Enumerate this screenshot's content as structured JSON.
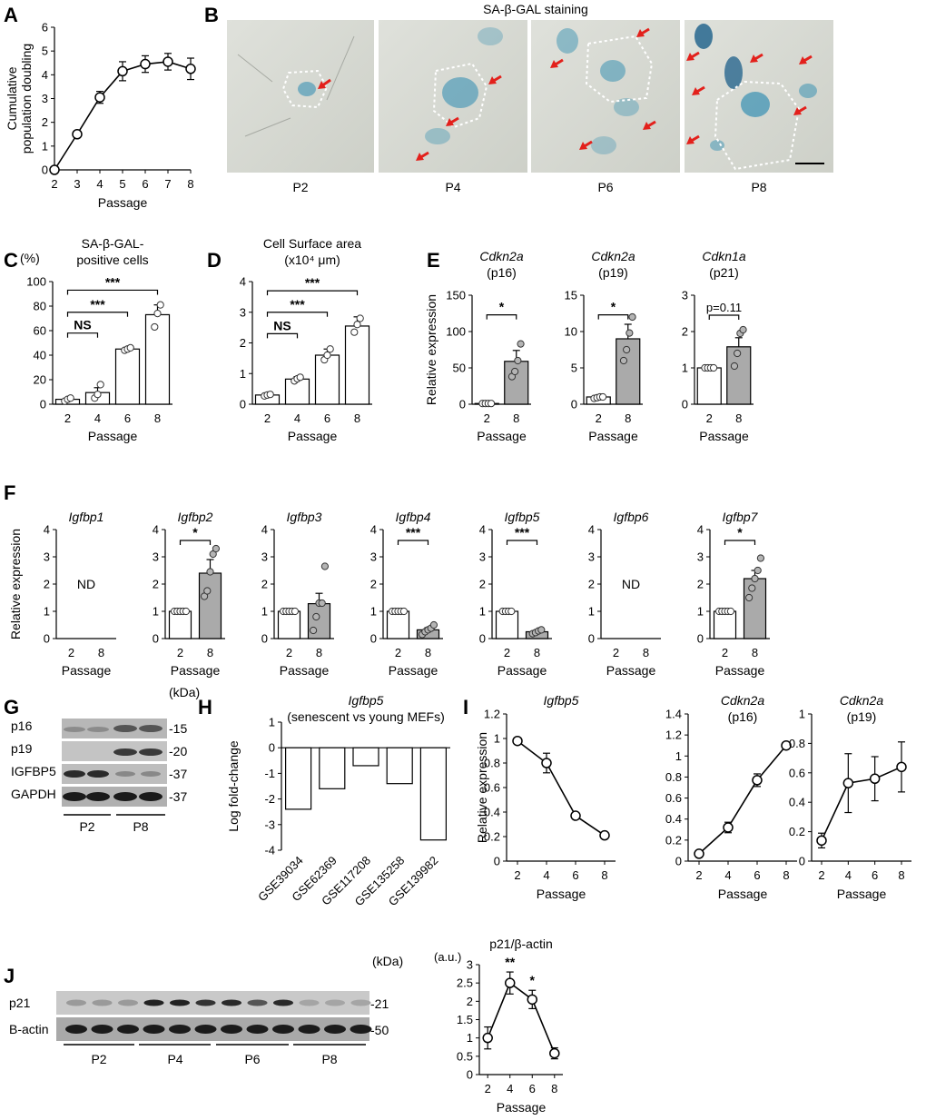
{
  "colors": {
    "open": "#ffffff",
    "gray": "#aaaaaa",
    "dot": "#b4b4b4",
    "arrow": "#e3201b",
    "stain": "#2b8bb0"
  },
  "chart_data": [
    {
      "id": "A",
      "type": "line",
      "panel_label": "A",
      "ylabel": [
        "Cumulative",
        "population doubling"
      ],
      "xlabel": "Passage",
      "x": [
        2,
        3,
        4,
        5,
        6,
        7,
        8
      ],
      "y": [
        0,
        1.5,
        3.05,
        4.15,
        4.45,
        4.55,
        4.25
      ],
      "err": [
        0,
        0.1,
        0.25,
        0.4,
        0.35,
        0.35,
        0.45
      ],
      "xlim": [
        2,
        8
      ],
      "ylim": [
        0,
        6
      ],
      "yticks": [
        0,
        1,
        2,
        3,
        4,
        5,
        6
      ]
    },
    {
      "id": "C",
      "type": "bar",
      "panel_label": "C",
      "unit": "(%)",
      "title": [
        "SA-β-GAL-",
        "positive cells"
      ],
      "xlabel": "Passage",
      "categories": [
        "2",
        "4",
        "6",
        "8"
      ],
      "values": [
        4,
        9.5,
        45,
        73
      ],
      "err": [
        1,
        4,
        1,
        8
      ],
      "points": [
        [
          2.5,
          4,
          5
        ],
        [
          5,
          8,
          16
        ],
        [
          44,
          45,
          46
        ],
        [
          63,
          74,
          81
        ]
      ],
      "ylim": [
        0,
        100
      ],
      "yticks": [
        0,
        20,
        40,
        60,
        80,
        100
      ],
      "brackets": [
        {
          "from": 0,
          "to": 1,
          "y": 58,
          "label": "NS"
        },
        {
          "from": 0,
          "to": 2,
          "y": 75,
          "label": "***"
        },
        {
          "from": 0,
          "to": 3,
          "y": 93,
          "label": "***"
        }
      ]
    },
    {
      "id": "D",
      "type": "bar",
      "panel_label": "D",
      "title": [
        "Cell Surface area",
        "(x10⁴ μm)"
      ],
      "xlabel": "Passage",
      "categories": [
        "2",
        "4",
        "6",
        "8"
      ],
      "values": [
        0.3,
        0.82,
        1.6,
        2.55
      ],
      "err": [
        0.04,
        0.08,
        0.2,
        0.3
      ],
      "points": [
        [
          0.27,
          0.3,
          0.32
        ],
        [
          0.76,
          0.83,
          0.88
        ],
        [
          1.45,
          1.6,
          1.8
        ],
        [
          2.35,
          2.6,
          2.8
        ]
      ],
      "ylim": [
        0,
        4
      ],
      "yticks": [
        0,
        1,
        2,
        3,
        4
      ],
      "brackets": [
        {
          "from": 0,
          "to": 1,
          "y": 2.3,
          "label": "NS"
        },
        {
          "from": 0,
          "to": 2,
          "y": 3.0,
          "label": "***"
        },
        {
          "from": 0,
          "to": 3,
          "y": 3.7,
          "label": "***"
        }
      ]
    },
    {
      "id": "E1",
      "type": "bar",
      "panel_label": "E",
      "title": [
        "Cdkn2a",
        "(p16)"
      ],
      "italic_first": true,
      "ylabel": "Relative expression",
      "xlabel": "Passage",
      "categories": [
        "2",
        "8"
      ],
      "values": [
        1,
        59
      ],
      "err": [
        0,
        15
      ],
      "points": [
        [
          1,
          1,
          1,
          1
        ],
        [
          38,
          45,
          60,
          83
        ]
      ],
      "ylim": [
        0,
        150
      ],
      "yticks": [
        0,
        50,
        100,
        150
      ],
      "gray": [
        false,
        true
      ],
      "brackets": [
        {
          "from": 0,
          "to": 1,
          "y": 123,
          "label": "*"
        }
      ]
    },
    {
      "id": "E2",
      "type": "bar",
      "title": [
        "Cdkn2a",
        "(p19)"
      ],
      "italic_first": true,
      "xlabel": "Passage",
      "categories": [
        "2",
        "8"
      ],
      "values": [
        1,
        9
      ],
      "err": [
        0.1,
        2
      ],
      "points": [
        [
          0.8,
          0.9,
          1,
          1
        ],
        [
          6,
          7.5,
          9.8,
          12
        ]
      ],
      "ylim": [
        0,
        15
      ],
      "yticks": [
        0,
        5,
        10,
        15
      ],
      "gray": [
        false,
        true
      ],
      "brackets": [
        {
          "from": 0,
          "to": 1,
          "y": 12.3,
          "label": "*"
        }
      ]
    },
    {
      "id": "E3",
      "type": "bar",
      "title": [
        "Cdkn1a",
        "(p21)"
      ],
      "italic_first": true,
      "xlabel": "Passage",
      "categories": [
        "2",
        "8"
      ],
      "values": [
        1,
        1.58
      ],
      "err": [
        0.02,
        0.25
      ],
      "points": [
        [
          1,
          1,
          1,
          1
        ],
        [
          1.05,
          1.4,
          1.95,
          2.05
        ]
      ],
      "ylim": [
        0,
        3
      ],
      "yticks": [
        0,
        1,
        2,
        3
      ],
      "gray": [
        false,
        true
      ],
      "brackets": [
        {
          "from": 0,
          "to": 1,
          "y": 2.45,
          "label": "p=0.11"
        }
      ]
    },
    {
      "id": "F1",
      "type": "bar",
      "panel_label": "F",
      "title": [
        "Igfbp1"
      ],
      "italic_first": true,
      "ylabel": "Relative expression",
      "xlabel": "Passage",
      "categories": [
        "2",
        "8"
      ],
      "values": [
        null,
        null
      ],
      "nd": "ND",
      "ylim": [
        0,
        4
      ],
      "yticks": [
        0,
        1,
        2,
        3,
        4
      ]
    },
    {
      "id": "F2",
      "type": "bar",
      "title": [
        "Igfbp2"
      ],
      "italic_first": true,
      "xlabel": "Passage",
      "categories": [
        "2",
        "8"
      ],
      "values": [
        1,
        2.4
      ],
      "err": [
        0,
        0.5
      ],
      "points": [
        [
          1,
          1,
          1,
          1,
          1
        ],
        [
          1.55,
          1.75,
          2.45,
          3.1,
          3.3
        ]
      ],
      "ylim": [
        0,
        4
      ],
      "yticks": [
        0,
        1,
        2,
        3,
        4
      ],
      "gray": [
        false,
        true
      ],
      "brackets": [
        {
          "from": 0,
          "to": 1,
          "y": 3.6,
          "label": "*"
        }
      ]
    },
    {
      "id": "F3",
      "type": "bar",
      "title": [
        "Igfbp3"
      ],
      "italic_first": true,
      "xlabel": "Passage",
      "categories": [
        "2",
        "8"
      ],
      "values": [
        1,
        1.28
      ],
      "err": [
        0,
        0.38
      ],
      "points": [
        [
          1,
          1,
          1,
          1,
          1
        ],
        [
          0.3,
          0.8,
          1.3,
          1.3,
          2.65
        ]
      ],
      "ylim": [
        0,
        4
      ],
      "yticks": [
        0,
        1,
        2,
        3,
        4
      ],
      "gray": [
        false,
        true
      ]
    },
    {
      "id": "F4",
      "type": "bar",
      "title": [
        "Igfbp4"
      ],
      "italic_first": true,
      "xlabel": "Passage",
      "categories": [
        "2",
        "8"
      ],
      "values": [
        1,
        0.32
      ],
      "err": [
        0,
        0.08
      ],
      "points": [
        [
          1,
          1,
          1,
          1,
          1
        ],
        [
          0.15,
          0.25,
          0.32,
          0.38,
          0.5
        ]
      ],
      "ylim": [
        0,
        4
      ],
      "yticks": [
        0,
        1,
        2,
        3,
        4
      ],
      "gray": [
        false,
        true
      ],
      "brackets": [
        {
          "from": 0,
          "to": 1,
          "y": 3.6,
          "label": "***"
        }
      ]
    },
    {
      "id": "F5",
      "type": "bar",
      "title": [
        "Igfbp5"
      ],
      "italic_first": true,
      "xlabel": "Passage",
      "categories": [
        "2",
        "8"
      ],
      "values": [
        1,
        0.25
      ],
      "err": [
        0,
        0.04
      ],
      "points": [
        [
          1,
          1,
          1,
          1
        ],
        [
          0.18,
          0.22,
          0.28,
          0.32
        ]
      ],
      "ylim": [
        0,
        4
      ],
      "yticks": [
        0,
        1,
        2,
        3,
        4
      ],
      "gray": [
        false,
        true
      ],
      "brackets": [
        {
          "from": 0,
          "to": 1,
          "y": 3.6,
          "label": "***"
        }
      ]
    },
    {
      "id": "F6",
      "type": "bar",
      "title": [
        "Igfbp6"
      ],
      "italic_first": true,
      "xlabel": "Passage",
      "categories": [
        "2",
        "8"
      ],
      "values": [
        null,
        null
      ],
      "nd": "ND",
      "ylim": [
        0,
        4
      ],
      "yticks": [
        0,
        1,
        2,
        3,
        4
      ]
    },
    {
      "id": "F7",
      "type": "bar",
      "title": [
        "Igfbp7"
      ],
      "italic_first": true,
      "xlabel": "Passage",
      "categories": [
        "2",
        "8"
      ],
      "values": [
        1,
        2.2
      ],
      "err": [
        0,
        0.3
      ],
      "points": [
        [
          1,
          1,
          1,
          1,
          1
        ],
        [
          1.5,
          1.85,
          2.2,
          2.5,
          2.95
        ]
      ],
      "ylim": [
        0,
        4
      ],
      "yticks": [
        0,
        1,
        2,
        3,
        4
      ],
      "gray": [
        false,
        true
      ],
      "brackets": [
        {
          "from": 0,
          "to": 1,
          "y": 3.6,
          "label": "*"
        }
      ]
    },
    {
      "id": "H",
      "type": "bar",
      "panel_label": "H",
      "title": [
        "Igfbp5",
        "(senescent vs young MEFs)"
      ],
      "italic_first": true,
      "ylabel": "Log fold-change",
      "categories": [
        "GSE39034",
        "GSE62369",
        "GSE117208",
        "GSE135258",
        "GSE139982"
      ],
      "values": [
        -2.4,
        -1.6,
        -0.7,
        -1.4,
        -3.6
      ],
      "ylim": [
        -4,
        1
      ],
      "yticks": [
        -4,
        -3,
        -2,
        -1,
        0,
        1
      ]
    },
    {
      "id": "I1",
      "type": "line",
      "panel_label": "I",
      "title": [
        "Igfbp5"
      ],
      "italic_first": true,
      "ylabel": "Relative expression",
      "xlabel": "Passage",
      "x": [
        2,
        4,
        6,
        8
      ],
      "y": [
        0.98,
        0.8,
        0.37,
        0.21
      ],
      "err": [
        0.01,
        0.08,
        0.02,
        0.01
      ],
      "ylim": [
        0,
        1.2
      ],
      "yticks": [
        0,
        0.2,
        0.4,
        0.6,
        0.8,
        1.0,
        1.2
      ]
    },
    {
      "id": "I2",
      "type": "line",
      "title": [
        "Cdkn2a",
        "(p16)"
      ],
      "italic_first": true,
      "xlabel": "Passage",
      "x": [
        2,
        4,
        6,
        8
      ],
      "y": [
        0.07,
        0.32,
        0.77,
        1.1
      ],
      "err": [
        0.01,
        0.05,
        0.06,
        0.02
      ],
      "ylim": [
        0,
        1.4
      ],
      "yticks": [
        0,
        0.2,
        0.4,
        0.6,
        0.8,
        1.0,
        1.2,
        1.4
      ]
    },
    {
      "id": "I3",
      "type": "line",
      "title": [
        "Cdkn2a",
        "(p19)"
      ],
      "italic_first": true,
      "xlabel": "Passage",
      "x": [
        2,
        4,
        6,
        8
      ],
      "y": [
        0.14,
        0.53,
        0.56,
        0.64
      ],
      "err": [
        0.05,
        0.2,
        0.15,
        0.17
      ],
      "ylim": [
        0,
        1.0
      ],
      "yticks": [
        0,
        0.2,
        0.4,
        0.6,
        0.8,
        1.0
      ]
    },
    {
      "id": "J",
      "type": "line",
      "title": [
        "p21/β-actin"
      ],
      "unit": "(a.u.)",
      "xlabel": "Passage",
      "x": [
        2,
        4,
        6,
        8
      ],
      "y": [
        1.0,
        2.5,
        2.05,
        0.58
      ],
      "err": [
        0.3,
        0.3,
        0.25,
        0.15
      ],
      "sig": [
        "",
        "**",
        "*",
        ""
      ],
      "ylim": [
        0,
        3
      ],
      "yticks": [
        0,
        0.5,
        1.0,
        1.5,
        2.0,
        2.5,
        3.0
      ]
    }
  ],
  "panelB": {
    "panel_label": "B",
    "title": "SA-β-GAL staining",
    "images": [
      "P2",
      "P4",
      "P6",
      "P8"
    ]
  },
  "panelG": {
    "panel_label": "G",
    "unit": "(kDa)",
    "rows": [
      {
        "label": "p16",
        "kda": "-15"
      },
      {
        "label": "p19",
        "kda": "-20"
      },
      {
        "label": "IGFBP5",
        "kda": "-37"
      },
      {
        "label": "GAPDH",
        "kda": "-37"
      }
    ],
    "groups": [
      "P2",
      "P8"
    ]
  },
  "panelJblot": {
    "panel_label": "J",
    "unit": "(kDa)",
    "rows": [
      {
        "label": "p21",
        "kda": "-21"
      },
      {
        "label": "B-actin",
        "kda": "-50"
      }
    ],
    "groups": [
      "P2",
      "P4",
      "P6",
      "P8"
    ]
  }
}
